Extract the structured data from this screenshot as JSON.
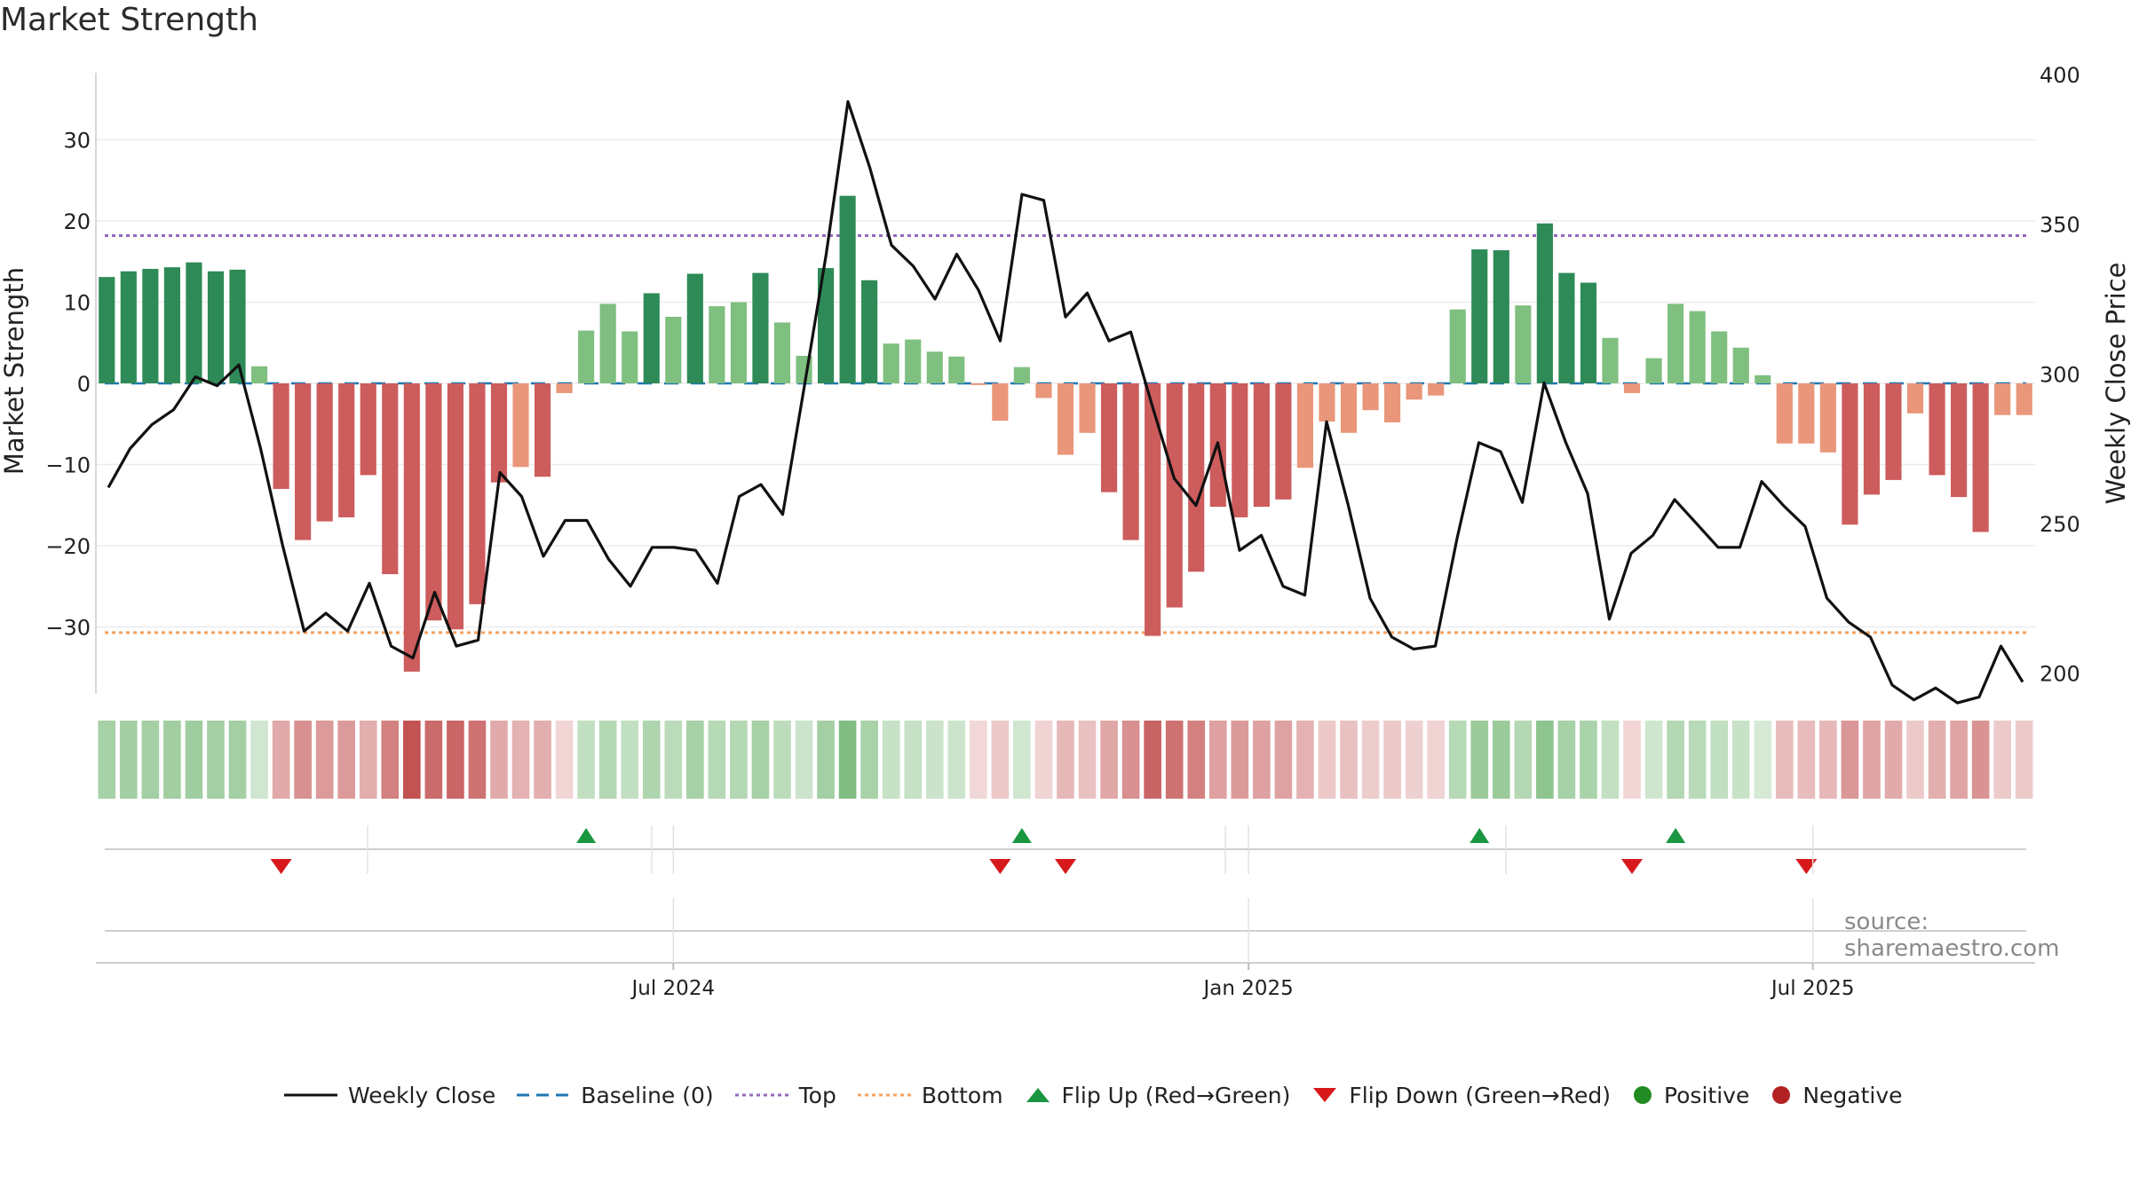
{
  "chart_data": {
    "type": "bar",
    "title": "Market Strength",
    "ylabel_left": "Market Strength",
    "ylabel_right": "Weekly Close Price",
    "left_axis": {
      "range": [
        -38,
        38
      ],
      "ticks": [
        30,
        20,
        10,
        0,
        -10,
        -20,
        -30
      ],
      "tick_labels": [
        "30",
        "20",
        "10",
        "0",
        "−10",
        "−20",
        "−30"
      ]
    },
    "right_axis": {
      "range": [
        193,
        403
      ],
      "ticks": [
        400,
        350,
        300,
        250,
        200
      ],
      "tick_labels": [
        "400",
        "350",
        "300",
        "250",
        "200"
      ]
    },
    "x_labels": [
      {
        "label": "Jul 2024",
        "week_index": 26
      },
      {
        "label": "Jan 2025",
        "week_index": 52.4
      },
      {
        "label": "Jul 2025",
        "week_index": 78.3
      }
    ],
    "thresholds": {
      "baseline": 0,
      "top": 18.2,
      "bottom": -30.7
    },
    "strength": [
      13.1,
      13.8,
      14.1,
      14.3,
      14.9,
      13.8,
      14.0,
      2.1,
      -13.0,
      -19.3,
      -17.0,
      -16.5,
      -11.3,
      -23.5,
      -35.5,
      -29.2,
      -30.3,
      -27.2,
      -12.2,
      -10.3,
      -11.5,
      -1.2,
      6.5,
      9.8,
      6.4,
      11.1,
      8.2,
      13.5,
      9.5,
      10.0,
      13.6,
      7.5,
      3.4,
      14.2,
      23.1,
      12.7,
      4.9,
      5.4,
      3.9,
      3.3,
      -0.2,
      -4.6,
      2.0,
      -1.8,
      -8.8,
      -6.1,
      -13.4,
      -19.3,
      -31.1,
      -27.6,
      -23.2,
      -15.2,
      -16.5,
      -15.2,
      -14.3,
      -10.4,
      -4.7,
      -6.1,
      -3.3,
      -4.8,
      -2.0,
      -1.5,
      9.1,
      16.5,
      16.4,
      9.6,
      19.7,
      13.6,
      12.4,
      5.6,
      -1.2,
      3.1,
      9.8,
      8.9,
      6.4,
      4.4,
      1.0,
      -7.4,
      -7.4,
      -8.5,
      -17.4,
      -13.7,
      -11.9,
      -3.7,
      -11.3,
      -14.0,
      -18.3,
      -3.9,
      -3.9
    ],
    "weekly_close": [
      262,
      275,
      283,
      288,
      299,
      296,
      303,
      275,
      243,
      214,
      220,
      214,
      230,
      209,
      205,
      227,
      209,
      211,
      267,
      259,
      239,
      251,
      251,
      238,
      229,
      242,
      242,
      241,
      230,
      259,
      263,
      253,
      296,
      340,
      391,
      369,
      343,
      336,
      325,
      340,
      328,
      311,
      360,
      358,
      319,
      327,
      311,
      314,
      289,
      265,
      256,
      277,
      241,
      246,
      229,
      226,
      284,
      256,
      225,
      212,
      208,
      209,
      245,
      277,
      274,
      257,
      297,
      277,
      260,
      218,
      240,
      246,
      258,
      250,
      242,
      242,
      264,
      256,
      249,
      225,
      217,
      212,
      196,
      191,
      195,
      190,
      192,
      209,
      197
    ],
    "flips_up": [
      22,
      42,
      63,
      72
    ],
    "flips_down": [
      8,
      41,
      44,
      70,
      78
    ],
    "legend": [
      "Weekly Close",
      "Baseline (0)",
      "Top",
      "Bottom",
      "Flip Up (Red→Green)",
      "Flip Down (Green→Red)",
      "Positive",
      "Negative"
    ],
    "source": "source: sharemaestro.com"
  },
  "colors": {
    "pos_dark": "#2e8b57",
    "pos_light": "#7fbf7f",
    "neg_dark": "#cd5c5c",
    "neg_light": "#e9967a",
    "line": "#111111",
    "baseline": "#1f77b4",
    "top": "#9467bd",
    "bottom": "#f4a261",
    "flip_up": "#1a9641",
    "flip_down": "#d7191c",
    "positive_dot": "#228b22",
    "negative_dot": "#b22222"
  }
}
